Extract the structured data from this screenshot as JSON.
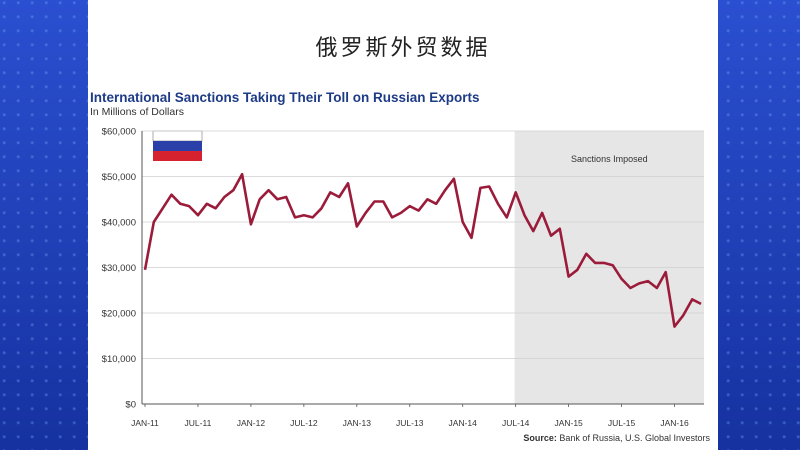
{
  "slide": {
    "title": "俄罗斯外贸数据"
  },
  "chart_data": {
    "type": "line",
    "title": "International Sanctions Taking Their Toll on Russian Exports",
    "subtitle": "In Millions of Dollars",
    "ylabel": "",
    "xlabel": "",
    "ylim": [
      0,
      60000
    ],
    "yticks": [
      0,
      10000,
      20000,
      30000,
      40000,
      50000,
      60000
    ],
    "ytick_labels": [
      "$0",
      "$10,000",
      "$20,000",
      "$30,000",
      "$40,000",
      "$50,000",
      "$60,000"
    ],
    "xtick_labels": [
      "JAN-11",
      "JUL-11",
      "JAN-12",
      "JUL-12",
      "JAN-13",
      "JUL-13",
      "JAN-14",
      "JUL-14",
      "JAN-15",
      "JUL-15",
      "JAN-16"
    ],
    "grid": "horizontal",
    "line_color": "#9b1b3a",
    "shade_color": "#e6e6e6",
    "annotation": {
      "text": "Sanctions Imposed",
      "start_month_index": 42
    },
    "series": [
      {
        "values": [
          29500,
          40000,
          43000,
          46000,
          44000,
          43500,
          41500,
          44000,
          43000,
          45500,
          47000,
          50500,
          39500,
          45000,
          47000,
          45000,
          45500,
          41000,
          41500,
          41000,
          43000,
          46500,
          45500,
          48500,
          39000,
          42000,
          44500,
          44500,
          41000,
          42000,
          43500,
          42500,
          45000,
          44000,
          47000,
          49500,
          40000,
          36500,
          47500,
          47800,
          44000,
          41000,
          46500,
          41500,
          38000,
          42000,
          37000,
          38500,
          28000,
          29500,
          33000,
          31000,
          31000,
          30500,
          27500,
          25500,
          26500,
          27000,
          25500,
          29000,
          17000,
          19500,
          23000,
          22000
        ]
      }
    ],
    "source_label": "Source:",
    "source_text": "Bank of Russia, U.S. Global Investors"
  }
}
